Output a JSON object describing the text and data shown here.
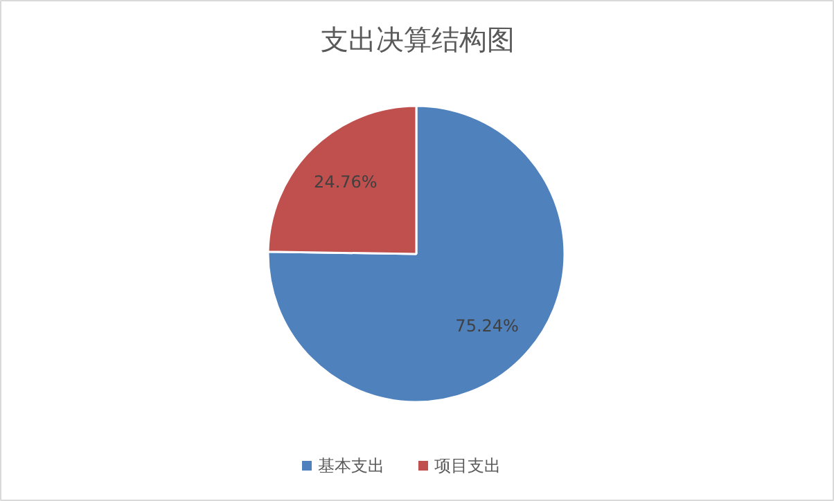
{
  "chart_data": {
    "type": "pie",
    "title": "支出决算结构图",
    "categories": [
      "基本支出",
      "项目支出"
    ],
    "values": [
      75.24,
      24.76
    ],
    "colors": [
      "#4f81bd",
      "#c0504d"
    ],
    "value_labels": [
      "75.24%",
      "24.76%"
    ],
    "legend": "bottom"
  }
}
